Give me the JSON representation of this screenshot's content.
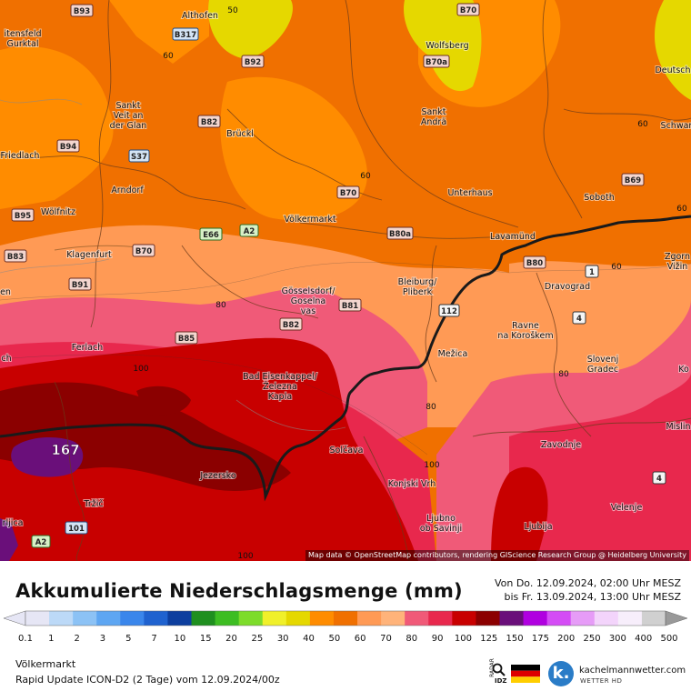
{
  "map": {
    "credit": "Map data © OpenStreetMap contributors, rendering GIScience Research Group @ Heidelberg University",
    "places": [
      "Althofen",
      "itensfeld",
      "Gurktal",
      "Wolfsberg",
      "Deutsch",
      "Sankt",
      "Veit an",
      "der Glan",
      "Sankt",
      "Andrä",
      "Schwan",
      "Brückl",
      "Friedlach",
      "Arndorf",
      "Unterhaus",
      "Soboth",
      "Wölfnitz",
      "Völkermarkt",
      "Klagenfurt",
      "Lavamünd",
      "Zgorn",
      "Vižin",
      "Gösselsdorf/",
      "Goselna",
      "vas",
      "Bleiburg/",
      "Pliberk",
      "Dravograd",
      "Ravne",
      "na Koroškem",
      "Ferlach",
      "Mežica",
      "Slovenj",
      "Gradec",
      "Bad Eisenkappel/",
      "Železna",
      "Kapla",
      "Solčava",
      "Zavodnje",
      "Mislin",
      "Jezersko",
      "Konjski Vrh",
      "Velenje",
      "Tržič",
      "Ljubno",
      "ob Savinji",
      "Ljubija",
      "rljica",
      "Ko",
      "ch",
      "en"
    ],
    "roads": [
      "B93",
      "B317",
      "B92",
      "B70",
      "B70a",
      "B82",
      "B94",
      "S37",
      "B69",
      "B70",
      "B95",
      "E66",
      "A2",
      "B80a",
      "B83",
      "B70",
      "B80",
      "B91",
      "B81",
      "B82",
      "B85",
      "112",
      "1",
      "4",
      "4",
      "A2",
      "101"
    ],
    "contour_labels": [
      "50",
      "60",
      "60",
      "60",
      "60",
      "60",
      "80",
      "100",
      "80",
      "80",
      "100",
      "100",
      "167",
      "80"
    ],
    "peak_value": "167"
  },
  "header": {
    "title": "Akkumulierte Niederschlagsmenge (mm)",
    "period_from": "Von Do. 12.09.2024, 02:00 Uhr MESZ",
    "period_to": "bis Fr. 13.09.2024, 13:00 Uhr MESZ"
  },
  "legend": {
    "ticks": [
      "0.1",
      "1",
      "2",
      "3",
      "5",
      "7",
      "10",
      "15",
      "20",
      "25",
      "30",
      "40",
      "50",
      "60",
      "70",
      "80",
      "90",
      "100",
      "125",
      "150",
      "175",
      "200",
      "250",
      "300",
      "400",
      "500"
    ],
    "colors": [
      "#e6e6f5",
      "#bcd9f7",
      "#8cc2f5",
      "#5ea6f2",
      "#3a86eb",
      "#1f62cf",
      "#0d3e9e",
      "#1f8f1f",
      "#3dbd22",
      "#7ddc2a",
      "#f0f02a",
      "#e5d800",
      "#ff8c00",
      "#f07000",
      "#ff9a55",
      "#ffb37a",
      "#f05a78",
      "#e8284d",
      "#c80000",
      "#8b0000",
      "#6a0f7a",
      "#b000e0",
      "#d44cf5",
      "#e69cf7",
      "#f3d4fb",
      "#f7eefb",
      "#d0d0d0"
    ]
  },
  "footer": {
    "location": "Völkermarkt",
    "model": "Rapid Update ICON-D2 (2 Tage) vom 12.09.2024/00z",
    "radar_label": "RADAR",
    "idz_label": "IDZ",
    "brand_mark": "k.",
    "brand_name": "kachelmannwetter.com",
    "brand_sub": "WETTER HD"
  }
}
